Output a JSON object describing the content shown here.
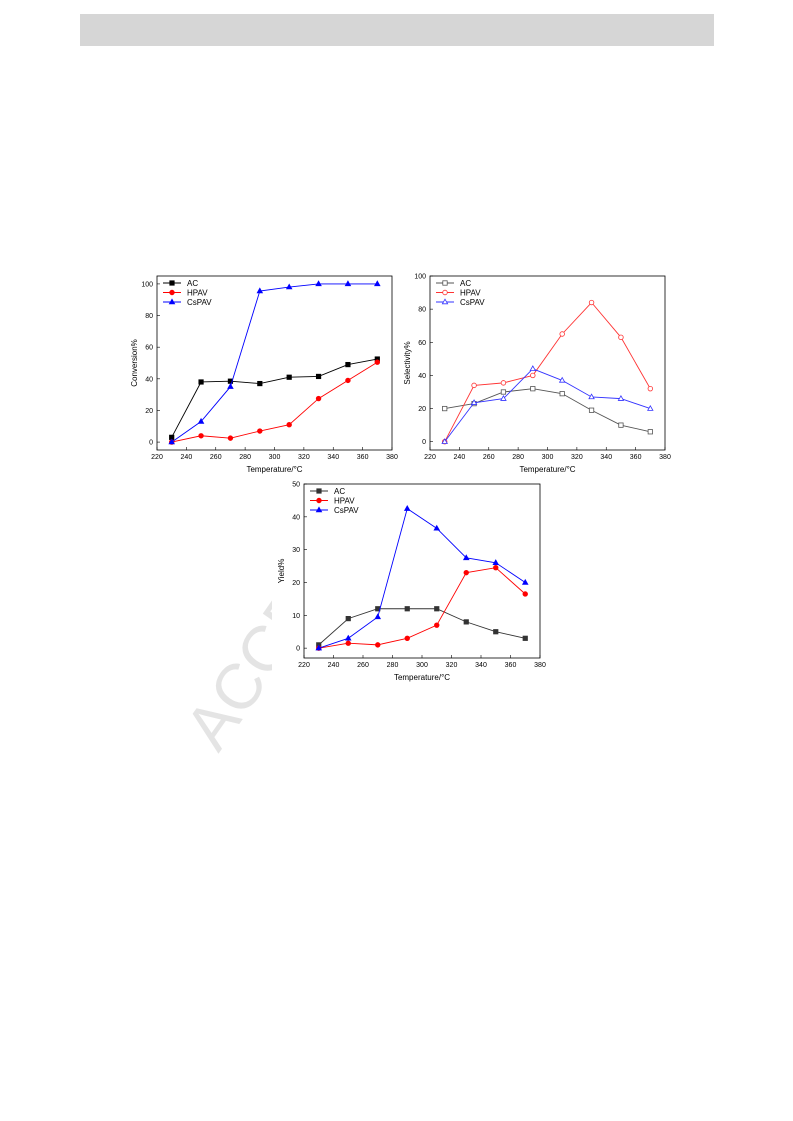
{
  "watermark": "ACCE",
  "chart_data": [
    {
      "type": "line",
      "marker_fill": "filled",
      "xlabel": "Temperature/°C",
      "ylabel": "Conversion%",
      "x": [
        230,
        250,
        270,
        290,
        310,
        330,
        350,
        370
      ],
      "xlim": [
        220,
        380
      ],
      "xticks": [
        220,
        240,
        260,
        280,
        300,
        320,
        340,
        360,
        380
      ],
      "ylim": [
        -5,
        105
      ],
      "yticks": [
        0,
        20,
        40,
        60,
        80,
        100
      ],
      "legend": "top-left",
      "series": [
        {
          "name": "AC",
          "color": "#000000",
          "marker": "square",
          "values": [
            3,
            38,
            38.5,
            37,
            41,
            41.5,
            49,
            52.5
          ]
        },
        {
          "name": "HPAV",
          "color": "#ff0000",
          "marker": "circle",
          "values": [
            0,
            4,
            2.5,
            7,
            11,
            27.5,
            39,
            50.5
          ]
        },
        {
          "name": "CsPAV",
          "color": "#0000ff",
          "marker": "triangle",
          "values": [
            0,
            13,
            35,
            95.5,
            98,
            100,
            100,
            100
          ]
        }
      ]
    },
    {
      "type": "line",
      "marker_fill": "hollow",
      "xlabel": "Temperature/°C",
      "ylabel": "Selectivity%",
      "x": [
        230,
        250,
        270,
        290,
        310,
        330,
        350,
        370
      ],
      "xlim": [
        220,
        380
      ],
      "xticks": [
        220,
        240,
        260,
        280,
        300,
        320,
        340,
        360,
        380
      ],
      "ylim": [
        -5,
        100
      ],
      "yticks": [
        0,
        20,
        40,
        60,
        80,
        100
      ],
      "legend": "top-left",
      "series": [
        {
          "name": "AC",
          "color": "#555555",
          "marker": "square",
          "values": [
            20,
            23,
            30,
            32,
            29,
            19,
            10,
            6
          ]
        },
        {
          "name": "HPAV",
          "color": "#ff3333",
          "marker": "circle",
          "values": [
            0,
            34,
            35.5,
            40,
            65,
            84,
            63,
            32
          ]
        },
        {
          "name": "CsPAV",
          "color": "#3333ff",
          "marker": "triangle",
          "values": [
            0,
            23.5,
            26,
            44,
            37,
            27,
            26,
            20
          ]
        }
      ]
    },
    {
      "type": "line",
      "marker_fill": "half",
      "xlabel": "Temperature/°C",
      "ylabel": "Yield%",
      "x": [
        230,
        250,
        270,
        290,
        310,
        330,
        350,
        370
      ],
      "xlim": [
        220,
        380
      ],
      "xticks": [
        220,
        240,
        260,
        280,
        300,
        320,
        340,
        360,
        380
      ],
      "ylim": [
        -3,
        50
      ],
      "yticks": [
        0,
        10,
        20,
        30,
        40,
        50
      ],
      "legend": "top-left",
      "series": [
        {
          "name": "AC",
          "color": "#333333",
          "marker": "square",
          "values": [
            1,
            9,
            12,
            12,
            12,
            8,
            5,
            3
          ]
        },
        {
          "name": "HPAV",
          "color": "#ff0000",
          "marker": "circle",
          "values": [
            0,
            1.5,
            1,
            3,
            7,
            23,
            24.5,
            16.5
          ]
        },
        {
          "name": "CsPAV",
          "color": "#0000ff",
          "marker": "triangle",
          "values": [
            0,
            3,
            9.5,
            42.5,
            36.5,
            27.5,
            26,
            20
          ]
        }
      ]
    }
  ]
}
